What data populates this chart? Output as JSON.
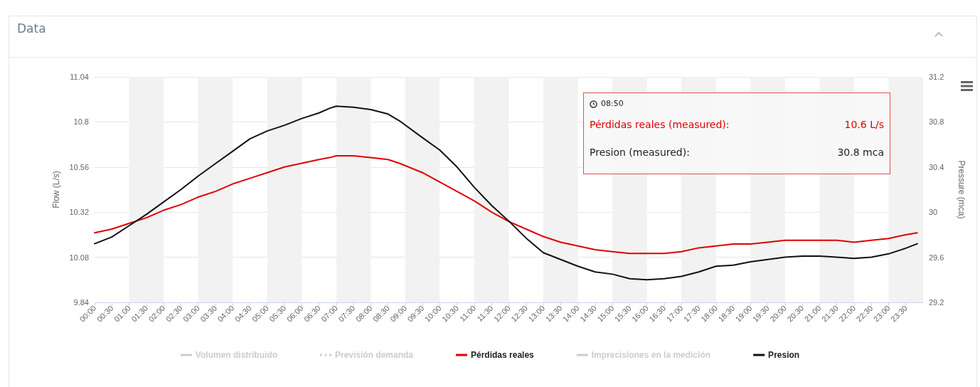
{
  "chart_data": {
    "type": "line",
    "title": "Data",
    "ylabel": "Flow (L/s)",
    "y2label": "Pressure (mca)",
    "annotations": [
      "08:50",
      "Pérdidas reales (measured):",
      "10.6 L/s",
      "Presion (measured):",
      "30.8 mca"
    ],
    "x": [
      0,
      0.5,
      1,
      1.5,
      2,
      2.5,
      3,
      3.5,
      4,
      4.5,
      5,
      5.5,
      6,
      6.5,
      6.8,
      7,
      7.5,
      8,
      8.5,
      8.83,
      9.5,
      10,
      10.5,
      11,
      11.5,
      12,
      12.5,
      13,
      13.5,
      14,
      14.5,
      15,
      15.5,
      16,
      16.5,
      17,
      17.5,
      18,
      18.5,
      19,
      19.5,
      20,
      20.5,
      21,
      21.5,
      22,
      22.5,
      23,
      23.5,
      23.83
    ],
    "xlim": [
      0,
      24
    ],
    "xticks": [
      {
        "value": 0,
        "label": "00:00"
      },
      {
        "value": 0.5,
        "label": "00:30"
      },
      {
        "value": 1,
        "label": "01:00"
      },
      {
        "value": 1.5,
        "label": "01:30"
      },
      {
        "value": 2,
        "label": "02:00"
      },
      {
        "value": 2.5,
        "label": "02:30"
      },
      {
        "value": 3,
        "label": "03:00"
      },
      {
        "value": 3.5,
        "label": "03:30"
      },
      {
        "value": 4,
        "label": "04:00"
      },
      {
        "value": 4.5,
        "label": "04:30"
      },
      {
        "value": 5,
        "label": "05:00"
      },
      {
        "value": 5.5,
        "label": "05:30"
      },
      {
        "value": 6,
        "label": "06:00"
      },
      {
        "value": 6.5,
        "label": "06:30"
      },
      {
        "value": 7,
        "label": "07:00"
      },
      {
        "value": 7.5,
        "label": "07:30"
      },
      {
        "value": 8,
        "label": "08:00"
      },
      {
        "value": 8.5,
        "label": "08:30"
      },
      {
        "value": 9,
        "label": "09:00"
      },
      {
        "value": 9.5,
        "label": "09:30"
      },
      {
        "value": 10,
        "label": "10:00"
      },
      {
        "value": 10.5,
        "label": "10:30"
      },
      {
        "value": 11,
        "label": "11:00"
      },
      {
        "value": 11.5,
        "label": "11:30"
      },
      {
        "value": 12,
        "label": "12:00"
      },
      {
        "value": 12.5,
        "label": "12:30"
      },
      {
        "value": 13,
        "label": "13:00"
      },
      {
        "value": 13.5,
        "label": "13:30"
      },
      {
        "value": 14,
        "label": "14:00"
      },
      {
        "value": 14.5,
        "label": "14:30"
      },
      {
        "value": 15,
        "label": "15:00"
      },
      {
        "value": 15.5,
        "label": "15:30"
      },
      {
        "value": 16,
        "label": "16:00"
      },
      {
        "value": 16.5,
        "label": "16:30"
      },
      {
        "value": 17,
        "label": "17:00"
      },
      {
        "value": 17.5,
        "label": "17:30"
      },
      {
        "value": 18,
        "label": "18:00"
      },
      {
        "value": 18.5,
        "label": "18:30"
      },
      {
        "value": 19,
        "label": "19:00"
      },
      {
        "value": 19.5,
        "label": "19:30"
      },
      {
        "value": 20,
        "label": "20:00"
      },
      {
        "value": 20.5,
        "label": "20:30"
      },
      {
        "value": 21,
        "label": "21:00"
      },
      {
        "value": 21.5,
        "label": "21:30"
      },
      {
        "value": 22,
        "label": "22:00"
      },
      {
        "value": 22.5,
        "label": "22:30"
      },
      {
        "value": 23,
        "label": "23:00"
      },
      {
        "value": 23.5,
        "label": "23:30"
      }
    ],
    "ylim": [
      9.84,
      11.04
    ],
    "yticks": [
      9.84,
      10.08,
      10.32,
      10.56,
      10.8,
      11.04
    ],
    "y2lim": [
      29.2,
      31.2
    ],
    "y2ticks": [
      29.2,
      29.6,
      30,
      30.4,
      30.8,
      31.2
    ],
    "bands": [
      {
        "axis": "x",
        "from": 1,
        "to": 2,
        "color": "#f2f2f2"
      },
      {
        "axis": "x",
        "from": 3,
        "to": 4,
        "color": "#f2f2f2"
      },
      {
        "axis": "x",
        "from": 5,
        "to": 6,
        "color": "#f2f2f2"
      },
      {
        "axis": "x",
        "from": 7,
        "to": 8,
        "color": "#f2f2f2"
      },
      {
        "axis": "x",
        "from": 9,
        "to": 10,
        "color": "#f2f2f2"
      },
      {
        "axis": "x",
        "from": 11,
        "to": 12,
        "color": "#f2f2f2"
      },
      {
        "axis": "x",
        "from": 13,
        "to": 14,
        "color": "#f2f2f2"
      },
      {
        "axis": "x",
        "from": 15,
        "to": 16,
        "color": "#f2f2f2"
      },
      {
        "axis": "x",
        "from": 17,
        "to": 18,
        "color": "#f2f2f2"
      },
      {
        "axis": "x",
        "from": 19,
        "to": 20,
        "color": "#f2f2f2"
      },
      {
        "axis": "x",
        "from": 21,
        "to": 22,
        "color": "#f2f2f2"
      },
      {
        "axis": "x",
        "from": 23,
        "to": 24,
        "color": "#f2f2f2"
      }
    ],
    "grid": "y",
    "legend": "bottom",
    "marker": "none",
    "series": [
      {
        "name": "Volumen distribuido",
        "color": "#cccccc",
        "values": [
          null,
          null,
          null,
          null,
          null,
          null,
          null,
          null,
          null,
          null,
          null,
          null,
          null,
          null,
          null,
          null,
          null,
          null,
          null,
          null,
          null,
          null,
          null,
          null,
          null,
          null,
          null,
          null,
          null,
          null,
          null,
          null,
          null,
          null,
          null,
          null,
          null,
          null,
          null,
          null,
          null,
          null,
          null,
          null,
          null,
          null,
          null,
          null,
          null,
          null
        ]
      },
      {
        "name": "Previsión demanda",
        "color": "#cccccc",
        "line_style": "dotted",
        "values": [
          null,
          null,
          null,
          null,
          null,
          null,
          null,
          null,
          null,
          null,
          null,
          null,
          null,
          null,
          null,
          null,
          null,
          null,
          null,
          null,
          null,
          null,
          null,
          null,
          null,
          null,
          null,
          null,
          null,
          null,
          null,
          null,
          null,
          null,
          null,
          null,
          null,
          null,
          null,
          null,
          null,
          null,
          null,
          null,
          null,
          null,
          null,
          null,
          null,
          null
        ]
      },
      {
        "name": "Pérdidas reales",
        "color": "#e00000",
        "values": [
          10.21,
          10.23,
          10.26,
          10.29,
          10.33,
          10.36,
          10.4,
          10.43,
          10.47,
          10.5,
          10.53,
          10.56,
          10.58,
          10.6,
          10.61,
          10.62,
          10.62,
          10.61,
          10.6,
          10.58,
          10.53,
          10.48,
          10.43,
          10.38,
          10.32,
          10.27,
          10.23,
          10.19,
          10.16,
          10.14,
          10.12,
          10.11,
          10.1,
          10.1,
          10.1,
          10.11,
          10.13,
          10.14,
          10.15,
          10.15,
          10.16,
          10.17,
          10.17,
          10.17,
          10.17,
          10.16,
          10.17,
          10.18,
          10.2,
          10.21
        ]
      },
      {
        "name": "Imprecisiones en la medición",
        "color": "#cccccc",
        "values": [
          null,
          null,
          null,
          null,
          null,
          null,
          null,
          null,
          null,
          null,
          null,
          null,
          null,
          null,
          null,
          null,
          null,
          null,
          null,
          null,
          null,
          null,
          null,
          null,
          null,
          null,
          null,
          null,
          null,
          null,
          null,
          null,
          null,
          null,
          null,
          null,
          null,
          null,
          null,
          null,
          null,
          null,
          null,
          null,
          null,
          null,
          null,
          null,
          null,
          null
        ]
      },
      {
        "name": "Presion",
        "color": "#111111",
        "axis": "y2",
        "values": [
          29.72,
          29.78,
          29.88,
          29.98,
          30.09,
          30.2,
          30.32,
          30.43,
          30.54,
          30.65,
          30.72,
          30.77,
          30.83,
          30.88,
          30.92,
          30.94,
          30.93,
          30.91,
          30.87,
          30.81,
          30.66,
          30.55,
          30.4,
          30.22,
          30.06,
          29.92,
          29.77,
          29.64,
          29.58,
          29.52,
          29.47,
          29.45,
          29.41,
          29.4,
          29.41,
          29.43,
          29.47,
          29.52,
          29.53,
          29.56,
          29.58,
          29.6,
          29.61,
          29.61,
          29.6,
          29.59,
          29.6,
          29.63,
          29.68,
          29.72
        ]
      }
    ]
  }
}
